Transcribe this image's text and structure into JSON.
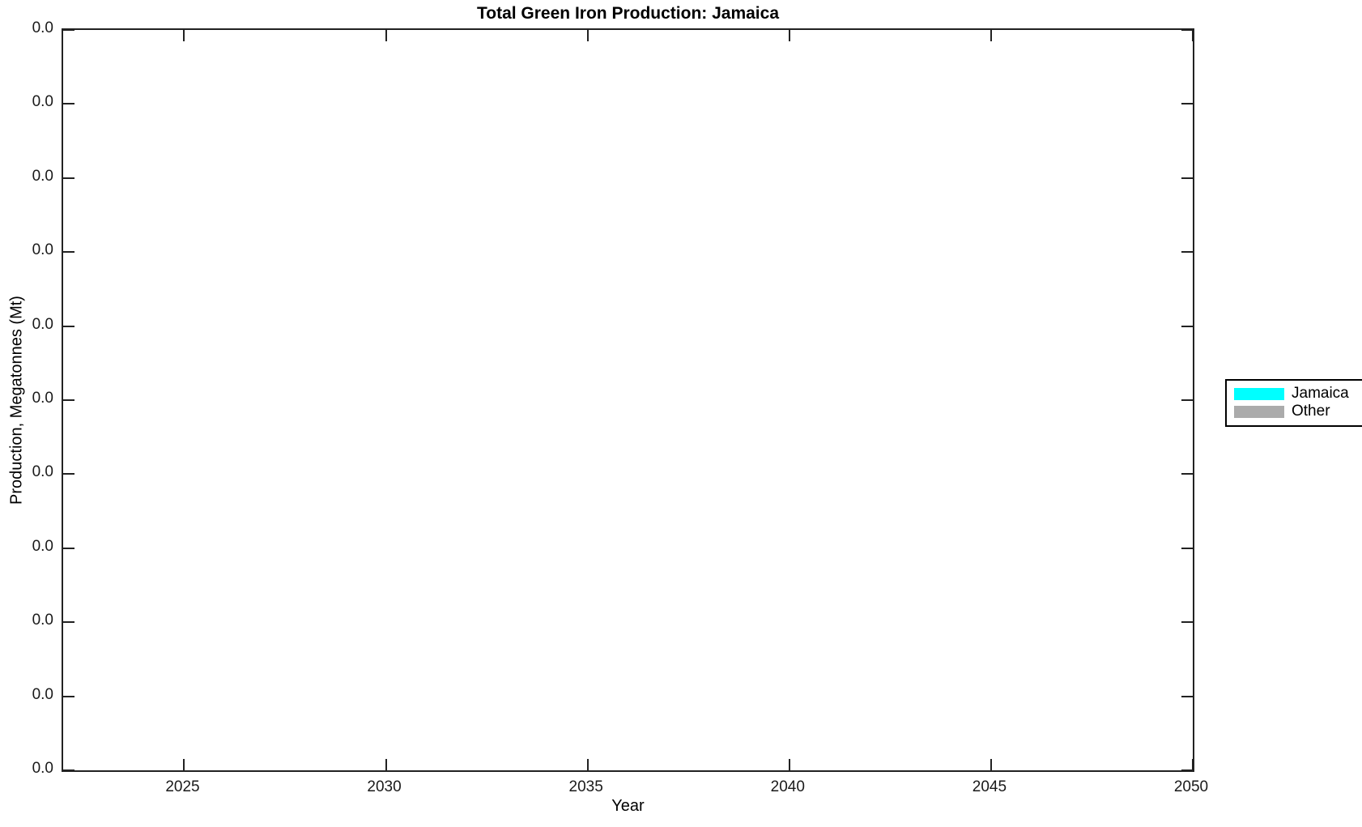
{
  "figure": {
    "title": "Total Green Iron Production: Jamaica",
    "xlabel": "Year",
    "ylabel": "Production, Megatonnes (Mt)",
    "background_color": "#FFFFFF",
    "axis_color": "#222222"
  },
  "axes": {
    "x": {
      "min": 2022,
      "max": 2050,
      "ticks": [
        2025,
        2030,
        2035,
        2040,
        2045,
        2050
      ],
      "tick_labels": [
        "2025",
        "2030",
        "2035",
        "2040",
        "2045",
        "2050"
      ]
    },
    "y": {
      "tick_labels": [
        "0.0",
        "0.0",
        "0.0",
        "0.0",
        "0.0",
        "0.0",
        "0.0",
        "0.0",
        "0.0",
        "0.0",
        "0.0"
      ]
    }
  },
  "legend": {
    "items": [
      {
        "label": "Jamaica",
        "color": "#00FFFF"
      },
      {
        "label": "Other",
        "color": "#ABABAB"
      }
    ],
    "position": "outside-right"
  },
  "chart_data": {
    "type": "area",
    "title": "Total Green Iron Production: Jamaica",
    "xlabel": "Year",
    "ylabel": "Production, Megatonnes (Mt)",
    "xlim": [
      2022,
      2050
    ],
    "x_ticks": [
      2025,
      2030,
      2035,
      2040,
      2045,
      2050
    ],
    "y_tick_labels": [
      "0.0",
      "0.0",
      "0.0",
      "0.0",
      "0.0",
      "0.0",
      "0.0",
      "0.0",
      "0.0",
      "0.0",
      "0.0"
    ],
    "x": [
      2025,
      2030,
      2035,
      2040,
      2045,
      2050
    ],
    "series": [
      {
        "name": "Jamaica",
        "color": "#00FFFF",
        "values": [
          0,
          0,
          0,
          0,
          0,
          0
        ]
      },
      {
        "name": "Other",
        "color": "#ABABAB",
        "values": [
          0,
          0,
          0,
          0,
          0,
          0
        ]
      }
    ],
    "grid": false,
    "legend_position": "outside-right",
    "note": "Plot area is empty: every y-axis tick label reads 0.0, i.e. zero production across all years."
  }
}
